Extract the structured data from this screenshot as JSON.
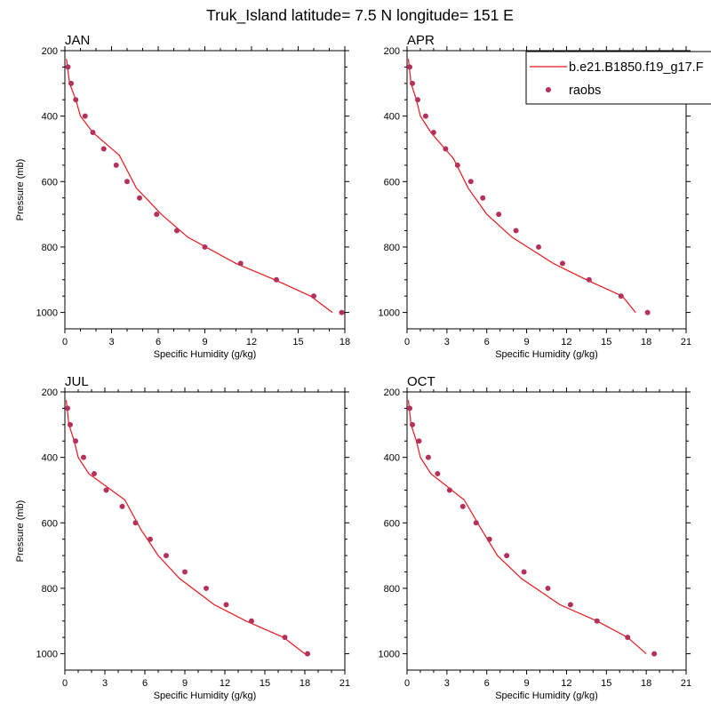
{
  "figure": {
    "title": "Truk_Island  latitude= 7.5 N longitude= 151 E",
    "ylabel": "Pressure (mb)",
    "xlabel": "Specific Humidity (g/kg)",
    "legend": {
      "position": "top-right",
      "model_label": "b.e21.B1850.f19_g17.F",
      "obs_label": "raobs"
    },
    "colors": {
      "model": "#e8171e",
      "obs": "#b3315a",
      "axis": "#000000"
    }
  },
  "chart_data": [
    {
      "type": "line",
      "title": "JAN",
      "xlim": [
        0,
        18
      ],
      "xticks": [
        0,
        3,
        6,
        9,
        12,
        15,
        18
      ],
      "ylim": [
        1050,
        200
      ],
      "yticks": [
        200,
        400,
        600,
        800,
        1000
      ],
      "series": [
        {
          "name": "b.e21.B1850.f19_g17.F",
          "kind": "line",
          "x": [
            0.1,
            0.3,
            0.7,
            1.0,
            1.8,
            3.5,
            4.6,
            6.2,
            7.9,
            11.0,
            13.5,
            15.8,
            17.2
          ],
          "y": [
            225,
            300,
            350,
            400,
            450,
            520,
            620,
            700,
            770,
            850,
            900,
            950,
            1000
          ]
        },
        {
          "name": "raobs",
          "kind": "scatter",
          "x": [
            0.2,
            0.4,
            0.7,
            1.3,
            1.8,
            2.5,
            3.3,
            4.0,
            4.8,
            5.9,
            7.2,
            9.0,
            11.3,
            13.6,
            16.0,
            17.8
          ],
          "y": [
            250,
            300,
            350,
            400,
            450,
            500,
            550,
            600,
            650,
            700,
            750,
            800,
            850,
            900,
            950,
            1000
          ]
        }
      ]
    },
    {
      "type": "line",
      "title": "APR",
      "xlim": [
        0,
        21
      ],
      "xticks": [
        0,
        3,
        6,
        9,
        12,
        15,
        18,
        21
      ],
      "ylim": [
        1050,
        200
      ],
      "yticks": [
        200,
        400,
        600,
        800,
        1000
      ],
      "series": [
        {
          "name": "b.e21.B1850.f19_g17.F",
          "kind": "line",
          "x": [
            0.1,
            0.3,
            0.7,
            1.0,
            1.8,
            3.5,
            4.6,
            6.0,
            7.9,
            11.0,
            13.5,
            16.2,
            17.2
          ],
          "y": [
            225,
            300,
            350,
            400,
            450,
            530,
            620,
            700,
            770,
            850,
            900,
            950,
            1000
          ]
        },
        {
          "name": "raobs",
          "kind": "scatter",
          "x": [
            0.2,
            0.4,
            0.8,
            1.4,
            2.0,
            2.9,
            3.8,
            4.8,
            5.7,
            6.9,
            8.2,
            9.9,
            11.7,
            13.7,
            16.1,
            18.1
          ],
          "y": [
            250,
            300,
            350,
            400,
            450,
            500,
            550,
            600,
            650,
            700,
            750,
            800,
            850,
            900,
            950,
            1000
          ]
        }
      ]
    },
    {
      "type": "line",
      "title": "JUL",
      "xlim": [
        0,
        21
      ],
      "xticks": [
        0,
        3,
        6,
        9,
        12,
        15,
        18,
        21
      ],
      "ylim": [
        1050,
        200
      ],
      "yticks": [
        200,
        400,
        600,
        800,
        1000
      ],
      "series": [
        {
          "name": "b.e21.B1850.f19_g17.F",
          "kind": "line",
          "x": [
            0.1,
            0.3,
            0.7,
            1.0,
            1.8,
            4.5,
            5.7,
            7.0,
            8.6,
            11.2,
            13.6,
            16.4,
            18.0
          ],
          "y": [
            225,
            300,
            350,
            400,
            450,
            530,
            620,
            700,
            770,
            850,
            900,
            950,
            1000
          ]
        },
        {
          "name": "raobs",
          "kind": "scatter",
          "x": [
            0.2,
            0.4,
            0.8,
            1.4,
            2.2,
            3.1,
            4.3,
            5.3,
            6.4,
            7.6,
            9.0,
            10.6,
            12.1,
            14.0,
            16.5,
            18.2
          ],
          "y": [
            250,
            300,
            350,
            400,
            450,
            500,
            550,
            600,
            650,
            700,
            750,
            800,
            850,
            900,
            950,
            1000
          ]
        }
      ]
    },
    {
      "type": "line",
      "title": "OCT",
      "xlim": [
        0,
        21
      ],
      "xticks": [
        0,
        3,
        6,
        9,
        12,
        15,
        18,
        21
      ],
      "ylim": [
        1050,
        200
      ],
      "yticks": [
        200,
        400,
        600,
        800,
        1000
      ],
      "series": [
        {
          "name": "b.e21.B1850.f19_g17.F",
          "kind": "line",
          "x": [
            0.1,
            0.3,
            0.7,
            1.0,
            1.8,
            4.3,
            5.6,
            6.8,
            8.6,
            11.5,
            14.3,
            16.6,
            18.0
          ],
          "y": [
            225,
            300,
            350,
            400,
            450,
            530,
            620,
            700,
            770,
            850,
            900,
            950,
            1000
          ]
        },
        {
          "name": "raobs",
          "kind": "scatter",
          "x": [
            0.2,
            0.4,
            0.9,
            1.6,
            2.3,
            3.2,
            4.2,
            5.2,
            6.2,
            7.5,
            8.8,
            10.6,
            12.3,
            14.3,
            16.6,
            18.6
          ],
          "y": [
            250,
            300,
            350,
            400,
            450,
            500,
            550,
            600,
            650,
            700,
            750,
            800,
            850,
            900,
            950,
            1000
          ]
        }
      ]
    }
  ]
}
